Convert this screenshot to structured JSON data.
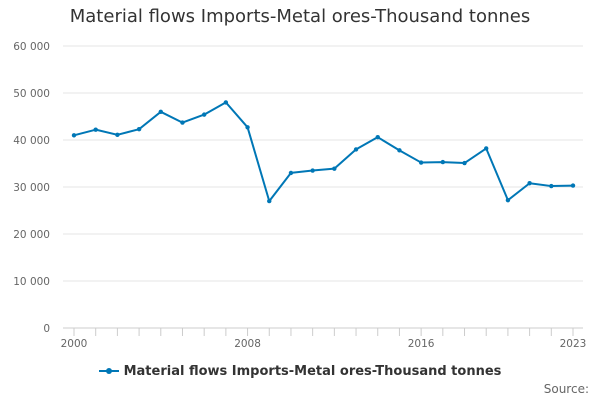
{
  "chart_data": {
    "type": "line",
    "title": "Material flows Imports-Metal ores-Thousand tonnes",
    "x": [
      2000,
      2001,
      2002,
      2003,
      2004,
      2005,
      2006,
      2007,
      2008,
      2009,
      2010,
      2011,
      2012,
      2013,
      2014,
      2015,
      2016,
      2017,
      2018,
      2019,
      2020,
      2021,
      2022,
      2023
    ],
    "series": [
      {
        "name": "Material flows Imports-Metal ores-Thousand tonnes",
        "color": "#0077b6",
        "values": [
          41000,
          42200,
          41100,
          42300,
          46000,
          43700,
          45400,
          48000,
          42700,
          27000,
          33000,
          33500,
          33900,
          38000,
          40600,
          37800,
          35200,
          35300,
          35100,
          38200,
          27200,
          30800,
          30200,
          30300
        ]
      }
    ],
    "y_ticks": [
      "0",
      "10 000",
      "20 000",
      "30 000",
      "40 000",
      "50 000",
      "60 000"
    ],
    "x_ticks": [
      "2000",
      "2008",
      "2016",
      "2023"
    ],
    "ylim": [
      0,
      60000
    ],
    "xlim": [
      2000,
      2023
    ],
    "grid": true,
    "legend_position": "bottom-center"
  },
  "source_label": "Source:"
}
